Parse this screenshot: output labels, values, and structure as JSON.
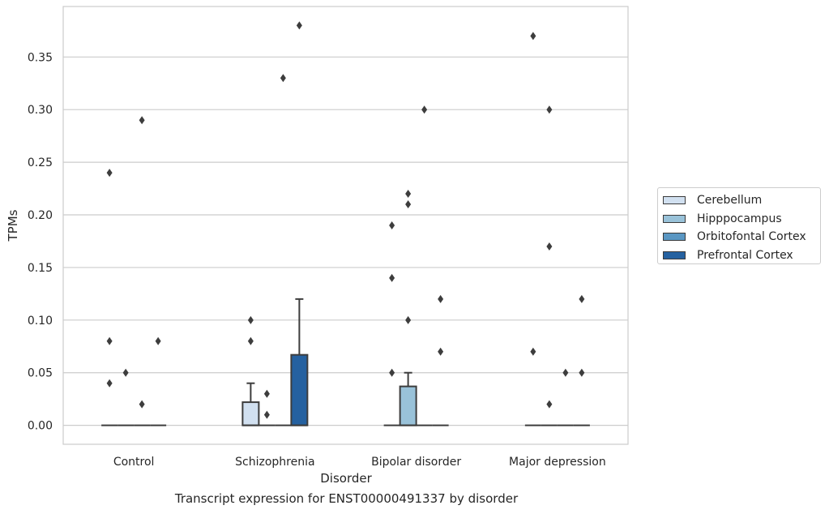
{
  "chart_data": {
    "type": "box",
    "title": "",
    "xlabel": "Disorder",
    "ylabel": "TPMs",
    "caption": "Transcript expression for ENST00000491337 by disorder",
    "ylim": [
      -0.018,
      0.398
    ],
    "yticks": [
      0.0,
      0.05,
      0.1,
      0.15,
      0.2,
      0.25,
      0.3,
      0.35
    ],
    "ytick_labels": [
      "0.00",
      "0.05",
      "0.10",
      "0.15",
      "0.20",
      "0.25",
      "0.30",
      "0.35"
    ],
    "grid": "horizontal",
    "legend_position": "right",
    "categories": [
      "Control",
      "Schizophrenia",
      "Bipolar disorder",
      "Major depression"
    ],
    "series": [
      {
        "name": "Cerebellum",
        "color": "#d1e0f0"
      },
      {
        "name": "Hipppocampus",
        "color": "#99c2d9"
      },
      {
        "name": "Orbitofontal Cortex",
        "color": "#5a97c3"
      },
      {
        "name": "Prefrontal Cortex",
        "color": "#2561a0"
      }
    ],
    "boxes": [
      {
        "category": 0,
        "series": 0,
        "q1": 0,
        "median": 0,
        "q3": 0,
        "whisker_low": 0,
        "whisker_high": 0,
        "outliers": [
          0.24,
          0.08,
          0.04
        ]
      },
      {
        "category": 0,
        "series": 1,
        "q1": 0,
        "median": 0,
        "q3": 0,
        "whisker_low": 0,
        "whisker_high": 0,
        "outliers": [
          0.05
        ]
      },
      {
        "category": 0,
        "series": 2,
        "q1": 0,
        "median": 0,
        "q3": 0,
        "whisker_low": 0,
        "whisker_high": 0,
        "outliers": [
          0.29,
          0.02
        ]
      },
      {
        "category": 0,
        "series": 3,
        "q1": 0,
        "median": 0,
        "q3": 0,
        "whisker_low": 0,
        "whisker_high": 0,
        "outliers": [
          0.08
        ]
      },
      {
        "category": 1,
        "series": 0,
        "q1": 0,
        "median": 0,
        "q3": 0.022,
        "whisker_low": 0,
        "whisker_high": 0.04,
        "outliers": [
          0.1,
          0.08
        ]
      },
      {
        "category": 1,
        "series": 1,
        "q1": 0,
        "median": 0,
        "q3": 0,
        "whisker_low": 0,
        "whisker_high": 0,
        "outliers": [
          0.03,
          0.01
        ]
      },
      {
        "category": 1,
        "series": 2,
        "q1": 0,
        "median": 0,
        "q3": 0,
        "whisker_low": 0,
        "whisker_high": 0,
        "outliers": [
          0.33
        ]
      },
      {
        "category": 1,
        "series": 3,
        "q1": 0,
        "median": 0,
        "q3": 0.067,
        "whisker_low": 0,
        "whisker_high": 0.12,
        "outliers": [
          0.38
        ]
      },
      {
        "category": 2,
        "series": 0,
        "q1": 0,
        "median": 0,
        "q3": 0,
        "whisker_low": 0,
        "whisker_high": 0,
        "outliers": [
          0.19,
          0.14,
          0.05
        ]
      },
      {
        "category": 2,
        "series": 1,
        "q1": 0,
        "median": 0,
        "q3": 0.037,
        "whisker_low": 0,
        "whisker_high": 0.05,
        "outliers": [
          0.22,
          0.21,
          0.1
        ]
      },
      {
        "category": 2,
        "series": 2,
        "q1": 0,
        "median": 0,
        "q3": 0,
        "whisker_low": 0,
        "whisker_high": 0,
        "outliers": [
          0.3
        ]
      },
      {
        "category": 2,
        "series": 3,
        "q1": 0,
        "median": 0,
        "q3": 0,
        "whisker_low": 0,
        "whisker_high": 0,
        "outliers": [
          0.12,
          0.07
        ]
      },
      {
        "category": 3,
        "series": 0,
        "q1": 0,
        "median": 0,
        "q3": 0,
        "whisker_low": 0,
        "whisker_high": 0,
        "outliers": [
          0.37,
          0.07
        ]
      },
      {
        "category": 3,
        "series": 1,
        "q1": 0,
        "median": 0,
        "q3": 0,
        "whisker_low": 0,
        "whisker_high": 0,
        "outliers": [
          0.3,
          0.17,
          0.02
        ]
      },
      {
        "category": 3,
        "series": 2,
        "q1": 0,
        "median": 0,
        "q3": 0,
        "whisker_low": 0,
        "whisker_high": 0,
        "outliers": [
          0.05
        ]
      },
      {
        "category": 3,
        "series": 3,
        "q1": 0,
        "median": 0,
        "q3": 0,
        "whisker_low": 0,
        "whisker_high": 0,
        "outliers": [
          0.12,
          0.05
        ]
      }
    ]
  }
}
